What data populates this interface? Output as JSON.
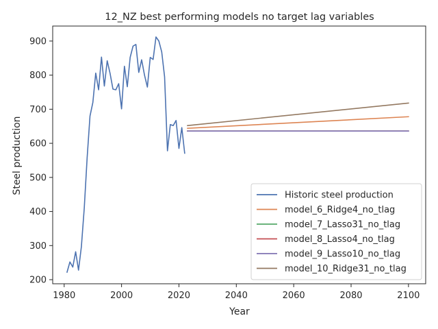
{
  "chart_data": {
    "type": "line",
    "title": "12_NZ best performing models no target lag variables",
    "xlabel": "Year",
    "ylabel": "Steel production",
    "xlim": [
      1976,
      2106
    ],
    "ylim": [
      188,
      944
    ],
    "xticks": [
      1980,
      2000,
      2020,
      2040,
      2060,
      2080,
      2100
    ],
    "yticks": [
      200,
      300,
      400,
      500,
      600,
      700,
      800,
      900
    ],
    "grid": false,
    "legend_position": "lower-right",
    "series": [
      {
        "name": "Historic steel production",
        "color": "#4c72b0",
        "x": [
          1981,
          1982,
          1983,
          1984,
          1985,
          1986,
          1987,
          1988,
          1989,
          1990,
          1991,
          1992,
          1993,
          1994,
          1995,
          1996,
          1997,
          1998,
          1999,
          2000,
          2001,
          2002,
          2003,
          2004,
          2005,
          2006,
          2007,
          2008,
          2009,
          2010,
          2011,
          2012,
          2013,
          2014,
          2015,
          2016,
          2017,
          2018,
          2019,
          2020,
          2021,
          2022
        ],
        "y": [
          222,
          252,
          237,
          282,
          228,
          297,
          410,
          557,
          680,
          720,
          806,
          757,
          853,
          768,
          842,
          805,
          759,
          757,
          775,
          701,
          826,
          766,
          852,
          885,
          890,
          808,
          845,
          800,
          765,
          852,
          846,
          912,
          900,
          868,
          795,
          578,
          655,
          652,
          667,
          585,
          646,
          571
        ]
      },
      {
        "name": "model_6_Ridge4_no_tlag",
        "color": "#dd8452",
        "x": [
          2023,
          2100
        ],
        "y": [
          644,
          678
        ]
      },
      {
        "name": "model_7_Lasso31_no_tlag",
        "color": "#55a868",
        "x": [
          2023,
          2100
        ],
        "y": [
          636,
          636
        ]
      },
      {
        "name": "model_8_Lasso4_no_tlag",
        "color": "#c44e52",
        "x": [
          2023,
          2100
        ],
        "y": [
          636,
          636
        ]
      },
      {
        "name": "model_9_Lasso10_no_tlag",
        "color": "#8172b3",
        "x": [
          2023,
          2100
        ],
        "y": [
          636,
          636
        ]
      },
      {
        "name": "model_10_Ridge31_no_tlag",
        "color": "#937860",
        "x": [
          2023,
          2100
        ],
        "y": [
          652,
          718
        ]
      }
    ]
  }
}
